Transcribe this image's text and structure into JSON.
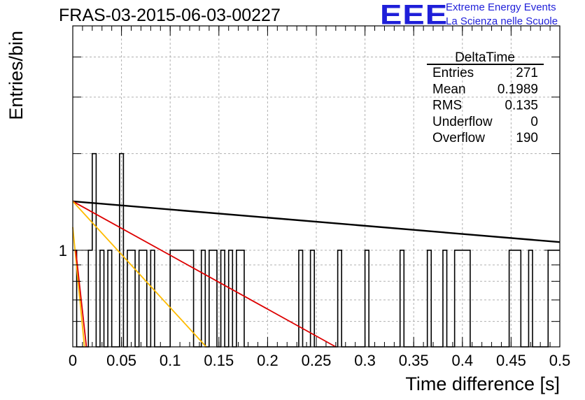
{
  "header": {
    "title": "FRAS-03-2015-06-03-00227",
    "logo_text": "EEE",
    "brand_line1": "Extreme Energy Events",
    "brand_line2": "La Scienza nelle Scuole"
  },
  "colors": {
    "hist": "#000000",
    "grid": "#b0b0b0",
    "logo": "#1f1fd9",
    "fit_black": "#000000",
    "fit_red": "#dd0000",
    "fit_orange": "#ffbb00"
  },
  "stats": {
    "title": "DeltaTime",
    "rows": [
      {
        "label": "Entries",
        "value": "271"
      },
      {
        "label": "Mean",
        "value": "0.1989"
      },
      {
        "label": "RMS",
        "value": "0.135"
      },
      {
        "label": "Underflow",
        "value": "0"
      },
      {
        "label": "Overflow",
        "value": "190"
      }
    ]
  },
  "chart_data": {
    "type": "bar",
    "style": "step-histogram",
    "xlabel": "Time difference [s]",
    "ylabel": "Entries/bin",
    "xlim": [
      0,
      0.5
    ],
    "ylim": [
      0.5,
      5
    ],
    "yscale": "log",
    "grid": true,
    "x_ticks": [
      "0",
      "0.05",
      "0.1",
      "0.15",
      "0.2",
      "0.25",
      "0.3",
      "0.35",
      "0.4",
      "0.45",
      "0.5"
    ],
    "y_ticks": [
      "1"
    ],
    "bin_width": 0.004,
    "counts": [
      1,
      0,
      0,
      0,
      1,
      2,
      0,
      1,
      0,
      1,
      0,
      0,
      2,
      0,
      1,
      1,
      0,
      1,
      1,
      0,
      1,
      0,
      0,
      0,
      0,
      1,
      1,
      1,
      1,
      1,
      1,
      0,
      0,
      1,
      0,
      1,
      1,
      0,
      1,
      0,
      1,
      0,
      1,
      1,
      0,
      0,
      0,
      0,
      0,
      0,
      0,
      0,
      0,
      0,
      0,
      0,
      0,
      0,
      1,
      0,
      0,
      1,
      0,
      0,
      0,
      0,
      0,
      0,
      1,
      0,
      0,
      0,
      0,
      0,
      0,
      1,
      0,
      0,
      0,
      0,
      0,
      0,
      0,
      0,
      1,
      0,
      0,
      0,
      0,
      0,
      0,
      1,
      0,
      0,
      0,
      1,
      0,
      0,
      1,
      1,
      1,
      1,
      0,
      0,
      0,
      0,
      0,
      0,
      0,
      0,
      0,
      0,
      1,
      1,
      1,
      0,
      0,
      1,
      0,
      0,
      0,
      0,
      1
    ],
    "fit_lines": [
      {
        "color": "black",
        "x": [
          0,
          0.5
        ],
        "y": [
          1.42,
          1.06
        ]
      },
      {
        "color": "red",
        "x": [
          0,
          0.27
        ],
        "y": [
          1.42,
          0.5
        ]
      },
      {
        "color": "orange",
        "x": [
          0,
          0.137
        ],
        "y": [
          1.42,
          0.5
        ]
      },
      {
        "color": "orange",
        "x": [
          0,
          0.012
        ],
        "y": [
          1.18,
          0.5
        ]
      },
      {
        "color": "red",
        "x": [
          0.003,
          0.014
        ],
        "y": [
          1.0,
          0.5
        ]
      }
    ]
  }
}
